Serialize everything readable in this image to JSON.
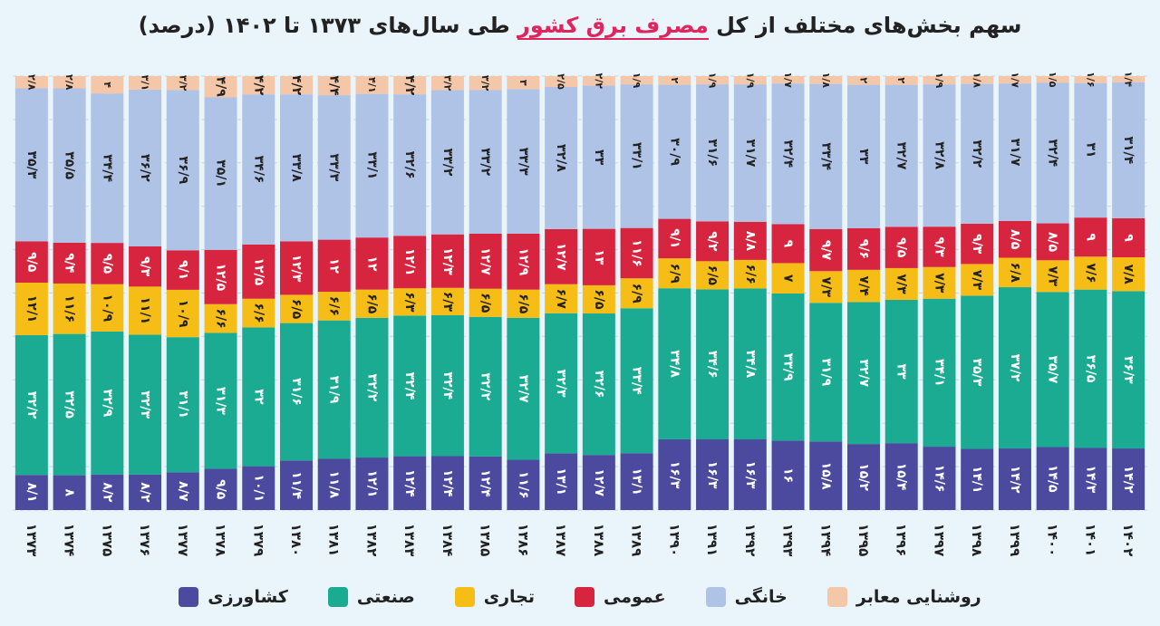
{
  "title": {
    "pre": "سهم بخش‌های مختلف از کل",
    "highlight": "مصرف برق کشور",
    "post": "طی سال‌های ۱۳۷۳ تا ۱۴۰۲ (درصد)"
  },
  "colors": {
    "agri": "#4b4a9e",
    "industry": "#1aab92",
    "commercial": "#f6bd16",
    "public": "#d8253f",
    "household": "#afc3e6",
    "lighting": "#f4c7a9"
  },
  "chart_data": {
    "type": "bar",
    "stacked": true,
    "normalized": true,
    "title": "سهم بخش‌های مختلف از کل مصرف برق کشور طی سال‌های ۱۳۷۳ تا ۱۴۰۲ (درصد)",
    "ylim": [
      0,
      100
    ],
    "categories": [
      "۱۳۷۳",
      "۱۳۷۴",
      "۱۳۷۵",
      "۱۳۷۶",
      "۱۳۷۷",
      "۱۳۷۸",
      "۱۳۷۹",
      "۱۳۸۰",
      "۱۳۸۱",
      "۱۳۸۲",
      "۱۳۸۳",
      "۱۳۸۴",
      "۱۳۸۵",
      "۱۳۸۶",
      "۱۳۸۷",
      "۱۳۸۸",
      "۱۳۸۹",
      "۱۳۹۰",
      "۱۳۹۱",
      "۱۳۹۲",
      "۱۳۹۳",
      "۱۳۹۴",
      "۱۳۹۵",
      "۱۳۹۶",
      "۱۳۹۷",
      "۱۳۹۸",
      "۱۳۹۹",
      "۱۴۰۰",
      "۱۴۰۱",
      "۱۴۰۲"
    ],
    "series": [
      {
        "key": "agri",
        "name": "کشاورزی",
        "values": [
          8.1,
          8,
          8.2,
          8.2,
          8.7,
          9.5,
          10.1,
          11.4,
          11.8,
          12.1,
          12.4,
          12.4,
          12.4,
          11.6,
          13.1,
          12.7,
          13.1,
          16.3,
          16.3,
          16.3,
          16,
          15.8,
          15.2,
          15.4,
          14.6,
          14.1,
          14.2,
          14.5,
          14.3,
          14.2
        ],
        "labels": [
          "۸/۱",
          "۸",
          "۸/۲",
          "۸/۲",
          "۸/۷",
          "۹/۵",
          "۱۰/۱",
          "۱۱/۴",
          "۱۱/۸",
          "۱۲/۱",
          "۱۲/۴",
          "۱۲/۴",
          "۱۲/۴",
          "۱۱/۶",
          "۱۳/۱",
          "۱۲/۷",
          "۱۳/۱",
          "۱۶/۳",
          "۱۶/۳",
          "۱۶/۳",
          "۱۶",
          "۱۵/۸",
          "۱۵/۲",
          "۱۵/۴",
          "۱۴/۶",
          "۱۴/۱",
          "۱۴/۲",
          "۱۴/۵",
          "۱۴/۳",
          "۱۴/۲"
        ]
      },
      {
        "key": "industry",
        "name": "صنعتی",
        "values": [
          32.2,
          32.5,
          32.9,
          32.3,
          31.1,
          31.3,
          32,
          31.6,
          31.9,
          32.2,
          32.4,
          32.4,
          32.2,
          32.7,
          32.3,
          32.6,
          33.4,
          34.8,
          34.6,
          34.8,
          33.9,
          31.9,
          32.7,
          33,
          34.1,
          35.3,
          37.2,
          35.7,
          36.5,
          36.3
        ],
        "labels": [
          "۳۲/۲",
          "۳۲/۵",
          "۳۲/۹",
          "۳۲/۳",
          "۳۱/۱",
          "۳۱/۳",
          "۳۲",
          "۳۱/۶",
          "۳۱/۹",
          "۳۲/۲",
          "۳۲/۴",
          "۳۲/۴",
          "۳۲/۲",
          "۳۲/۷",
          "۳۲/۳",
          "۳۲/۶",
          "۳۳/۴",
          "۳۴/۸",
          "۳۴/۶",
          "۳۴/۸",
          "۳۳/۹",
          "۳۱/۹",
          "۳۲/۷",
          "۳۳",
          "۳۴/۱",
          "۳۵/۳",
          "۳۷/۲",
          "۳۵/۷",
          "۳۶/۵",
          "۳۶/۳"
        ]
      },
      {
        "key": "commercial",
        "name": "تجاری",
        "values": [
          12.1,
          11.6,
          10.9,
          11.1,
          10.9,
          6.6,
          6.6,
          6.5,
          6.6,
          6.5,
          6.3,
          6.3,
          6.5,
          6.5,
          6.7,
          6.5,
          6.9,
          6.9,
          6.5,
          6.6,
          7,
          7.3,
          7.4,
          7.3,
          7.3,
          7.3,
          6.8,
          7.3,
          7.6,
          7.8
        ],
        "labels": [
          "۱۲/۱",
          "۱۱/۶",
          "۱۰/۹",
          "۱۱/۱",
          "۱۰/۹",
          "۶/۶",
          "۶/۶",
          "۶/۵",
          "۶/۶",
          "۶/۵",
          "۶/۳",
          "۶/۳",
          "۶/۵",
          "۶/۵",
          "۶/۷",
          "۶/۵",
          "۶/۹",
          "۶/۹",
          "۶/۵",
          "۶/۶",
          "۷",
          "۷/۳",
          "۷/۴",
          "۷/۳",
          "۷/۳",
          "۷/۳",
          "۶/۸",
          "۷/۳",
          "۷/۶",
          "۷/۸"
        ]
      },
      {
        "key": "public",
        "name": "عمومی",
        "values": [
          9.5,
          9.4,
          9.5,
          9.3,
          9.1,
          12.5,
          12.5,
          12.3,
          12,
          12,
          12.1,
          12.3,
          12.7,
          12.9,
          12.7,
          13,
          11.6,
          9.1,
          9.2,
          8.8,
          9,
          9.7,
          9.6,
          9.5,
          9.3,
          9.3,
          8.5,
          8.5,
          9,
          9
        ],
        "labels": [
          "۹/۵",
          "۹/۴",
          "۹/۵",
          "۹/۳",
          "۹/۱",
          "۱۲/۵",
          "۱۲/۵",
          "۱۲/۳",
          "۱۲",
          "۱۲",
          "۱۲/۱",
          "۱۲/۳",
          "۱۲/۷",
          "۱۲/۹",
          "۱۲/۷",
          "۱۳",
          "۱۱/۶",
          "۹/۱",
          "۹/۲",
          "۸/۸",
          "۹",
          "۹/۷",
          "۹/۶",
          "۹/۵",
          "۹/۳",
          "۹/۳",
          "۸/۵",
          "۸/۵",
          "۹",
          "۹"
        ]
      },
      {
        "key": "household",
        "name": "خانگی",
        "values": [
          35.3,
          35.5,
          34.4,
          36.2,
          36.9,
          35.1,
          34.6,
          33.8,
          33.3,
          33.1,
          32.6,
          33.2,
          33.2,
          33.3,
          32.8,
          33,
          33.1,
          30.9,
          31.6,
          31.7,
          32.4,
          33.4,
          33,
          32.7,
          32.8,
          32.2,
          31.7,
          32.4,
          31,
          31.4
        ],
        "labels": [
          "۳۵/۳",
          "۳۵/۵",
          "۳۴/۴",
          "۳۶/۲",
          "۳۶/۹",
          "۳۵/۱",
          "۳۴/۶",
          "۳۳/۸",
          "۳۳/۳",
          "۳۳/۱",
          "۳۲/۶",
          "۳۳/۲",
          "۳۳/۲",
          "۳۳/۳",
          "۳۲/۸",
          "۳۳",
          "۳۳/۱",
          "۳۰/۹",
          "۳۱/۶",
          "۳۱/۷",
          "۳۲/۴",
          "۳۳/۴",
          "۳۳",
          "۳۲/۷",
          "۳۲/۸",
          "۳۲/۲",
          "۳۱/۷",
          "۳۲/۴",
          "۳۱",
          "۳۱/۴"
        ]
      },
      {
        "key": "lighting",
        "name": "روشنایی معابر",
        "values": [
          2.8,
          2.8,
          4,
          3.1,
          3.2,
          4.9,
          4.2,
          4.2,
          4.4,
          4.1,
          4.2,
          3.2,
          3.2,
          3,
          2.5,
          2.2,
          1.9,
          2,
          1.9,
          1.9,
          1.7,
          1.8,
          2,
          2,
          1.9,
          1.8,
          1.7,
          1.5,
          1.6,
          1.4
        ],
        "labels": [
          "۲/۸",
          "۲/۸",
          "۴",
          "۳/۱",
          "۳/۲",
          "۴/۹",
          "۴/۲",
          "۴/۲",
          "۴/۴",
          "۴/۱",
          "۴/۲",
          "۳/۲",
          "۳/۲",
          "۳",
          "۲/۵",
          "۲/۲",
          "۱/۹",
          "۲",
          "۱/۹",
          "۱/۹",
          "۱/۷",
          "۱/۸",
          "۲",
          "۲",
          "۱/۹",
          "۱/۸",
          "۱/۷",
          "۱/۵",
          "۱/۶",
          "۱/۴"
        ]
      }
    ],
    "legend": [
      {
        "key": "lighting",
        "label": "روشنایی معابر"
      },
      {
        "key": "household",
        "label": "خانگی"
      },
      {
        "key": "public",
        "label": "عمومی"
      },
      {
        "key": "commercial",
        "label": "تجاری"
      },
      {
        "key": "industry",
        "label": "صنعتی"
      },
      {
        "key": "agri",
        "label": "کشاورزی"
      }
    ]
  }
}
